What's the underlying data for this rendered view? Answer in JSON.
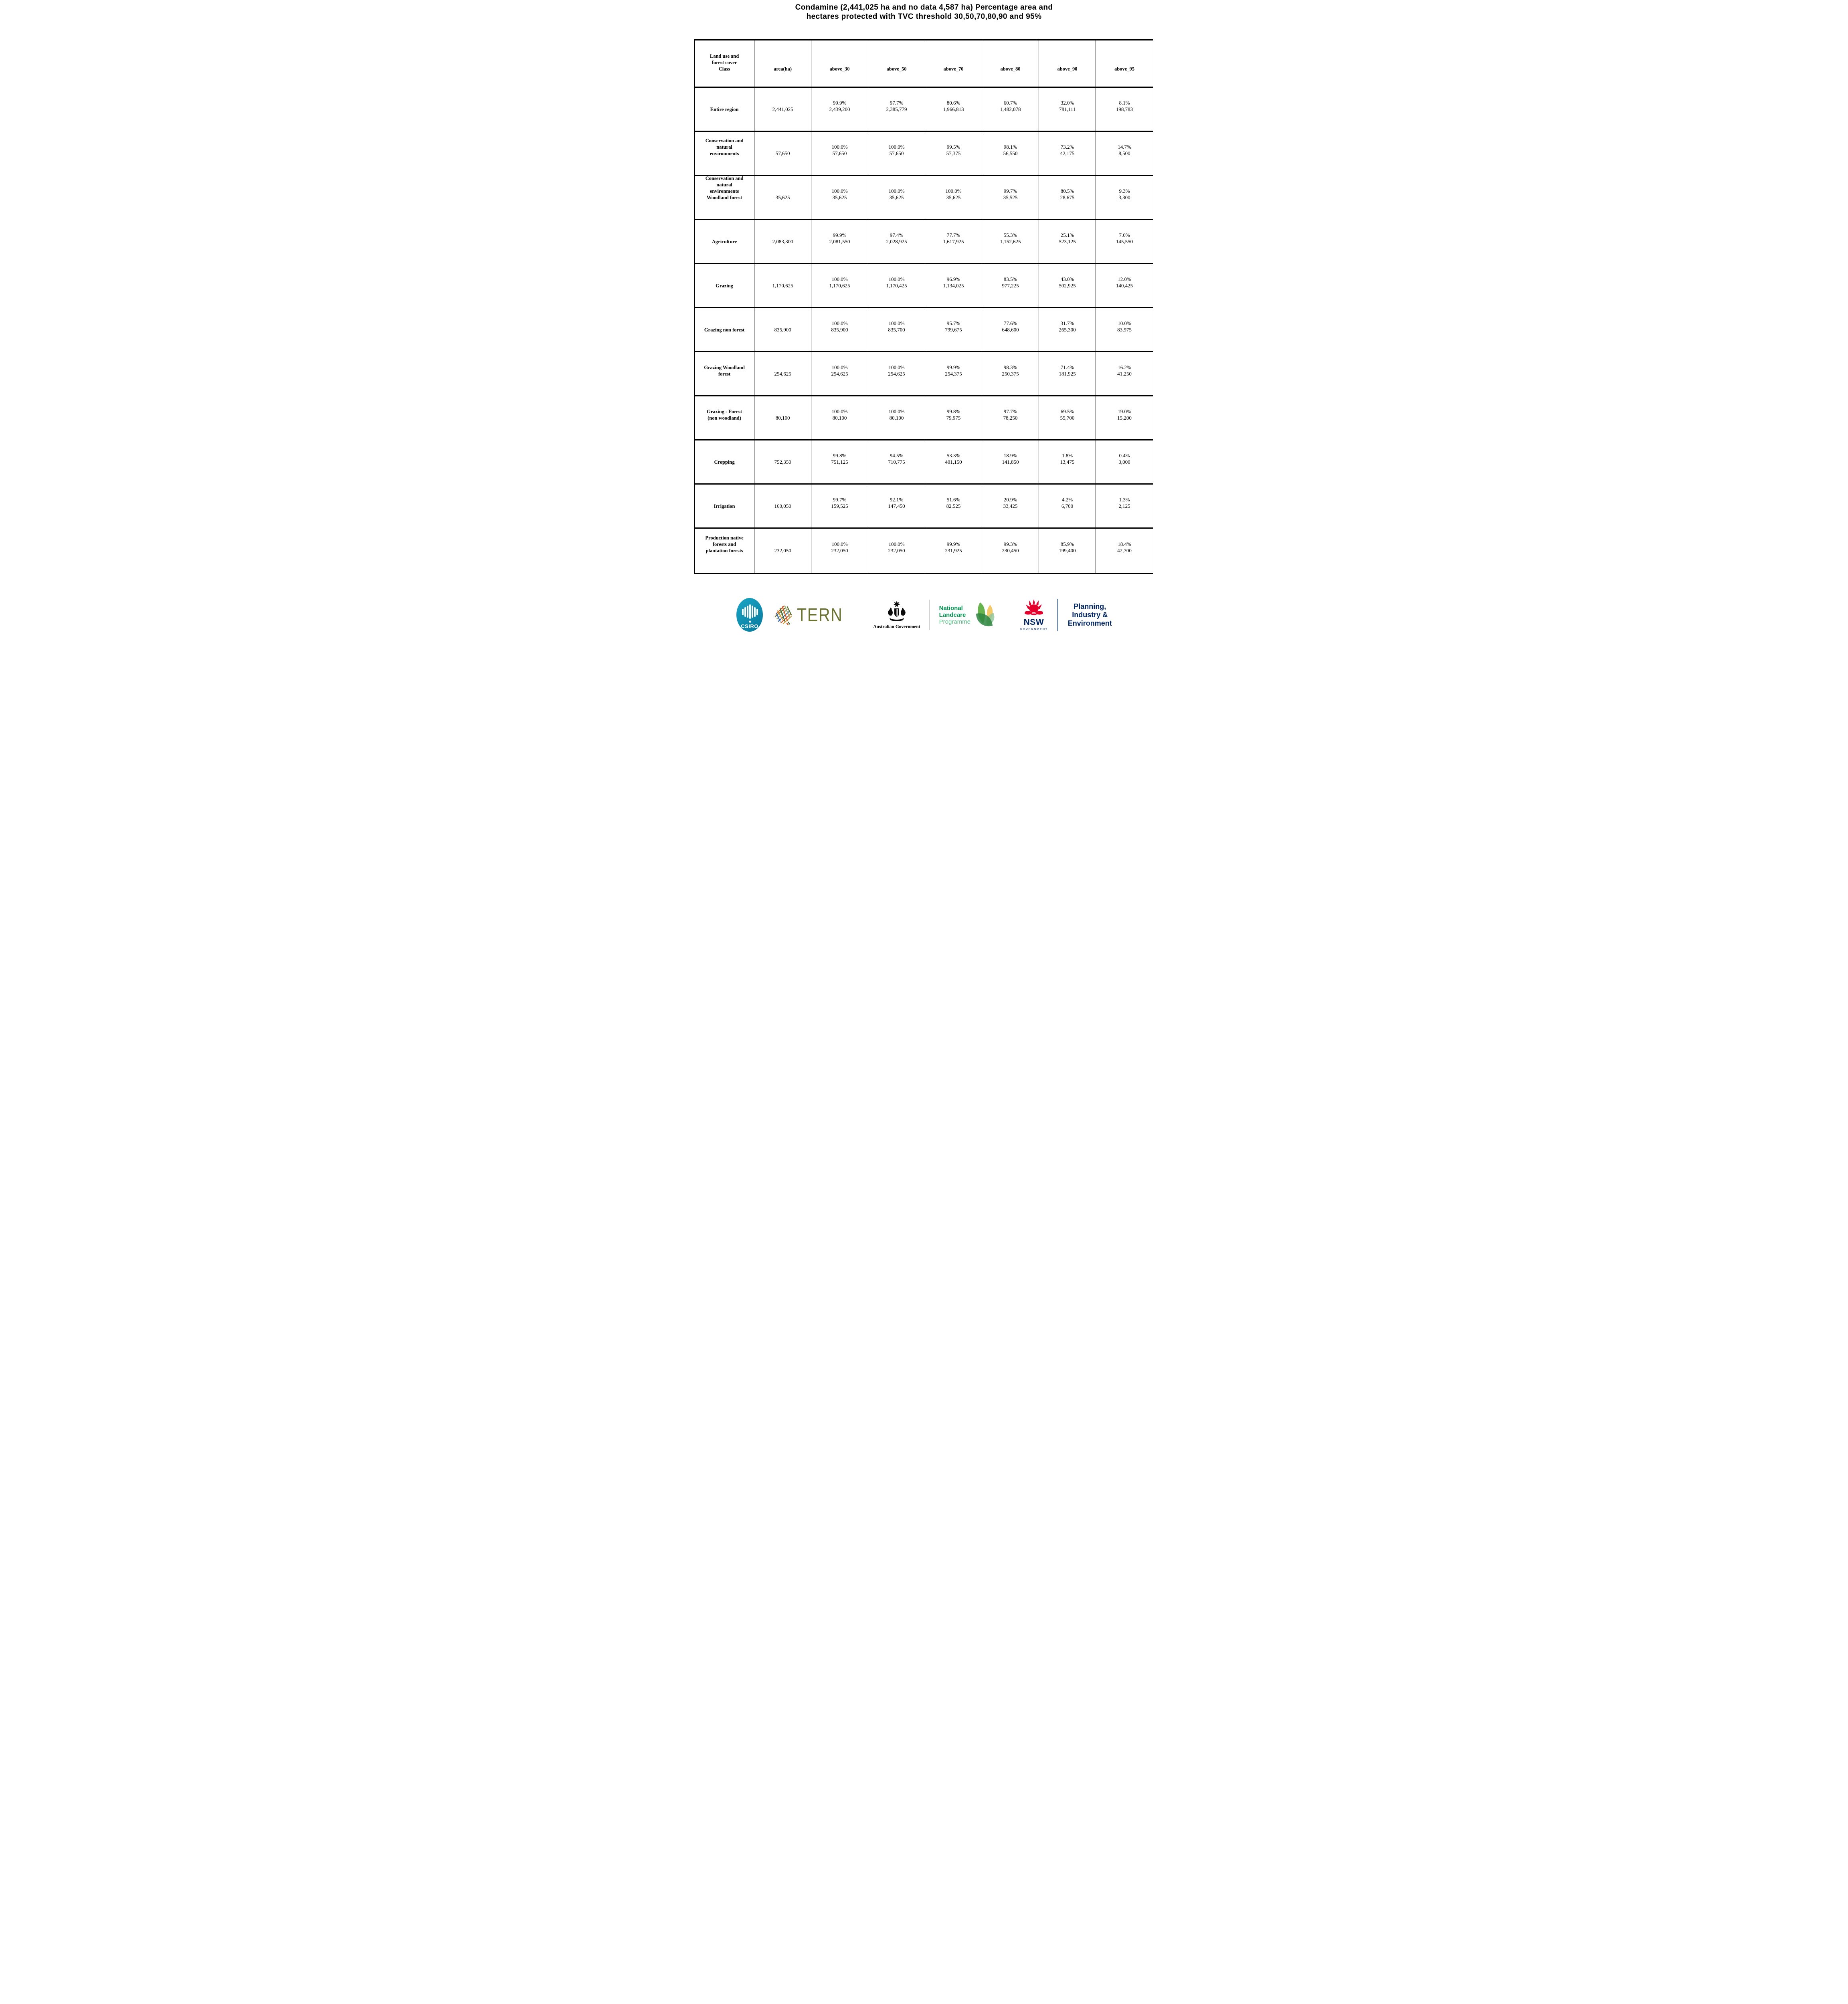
{
  "title": {
    "line1": "Condamine (2,441,025 ha and no data 4,587 ha) Percentage area and",
    "line2": "hectares protected with TVC threshold 30,50,70,80,90 and 95%"
  },
  "table": {
    "columns": [
      "Land use and forest cover Class",
      "area(ha)",
      "above_30",
      "above_50",
      "above_70",
      "above_80",
      "above_90",
      "above_95"
    ],
    "rows": [
      {
        "name": "Entire region",
        "area": "2,441,025",
        "thresholds": [
          {
            "pct": "99.9%",
            "ha": "2,439,200"
          },
          {
            "pct": "97.7%",
            "ha": "2,385,779"
          },
          {
            "pct": "80.6%",
            "ha": "1,966,813"
          },
          {
            "pct": "60.7%",
            "ha": "1,482,078"
          },
          {
            "pct": "32.0%",
            "ha": "781,111"
          },
          {
            "pct": "8.1%",
            "ha": "198,783"
          }
        ]
      },
      {
        "name": "Conservation and natural environments",
        "area": "57,650",
        "thresholds": [
          {
            "pct": "100.0%",
            "ha": "57,650"
          },
          {
            "pct": "100.0%",
            "ha": "57,650"
          },
          {
            "pct": "99.5%",
            "ha": "57,375"
          },
          {
            "pct": "98.1%",
            "ha": "56,550"
          },
          {
            "pct": "73.2%",
            "ha": "42,175"
          },
          {
            "pct": "14.7%",
            "ha": "8,500"
          }
        ]
      },
      {
        "name": "Conservation and natural environments Woodland forest",
        "area": "35,625",
        "thresholds": [
          {
            "pct": "100.0%",
            "ha": "35,625"
          },
          {
            "pct": "100.0%",
            "ha": "35,625"
          },
          {
            "pct": "100.0%",
            "ha": "35,625"
          },
          {
            "pct": "99.7%",
            "ha": "35,525"
          },
          {
            "pct": "80.5%",
            "ha": "28,675"
          },
          {
            "pct": "9.3%",
            "ha": "3,300"
          }
        ]
      },
      {
        "name": "Agriculture",
        "area": "2,083,300",
        "thresholds": [
          {
            "pct": "99.9%",
            "ha": "2,081,550"
          },
          {
            "pct": "97.4%",
            "ha": "2,028,925"
          },
          {
            "pct": "77.7%",
            "ha": "1,617,925"
          },
          {
            "pct": "55.3%",
            "ha": "1,152,625"
          },
          {
            "pct": "25.1%",
            "ha": "523,125"
          },
          {
            "pct": "7.0%",
            "ha": "145,550"
          }
        ]
      },
      {
        "name": "Grazing",
        "area": "1,170,625",
        "thresholds": [
          {
            "pct": "100.0%",
            "ha": "1,170,625"
          },
          {
            "pct": "100.0%",
            "ha": "1,170,425"
          },
          {
            "pct": "96.9%",
            "ha": "1,134,025"
          },
          {
            "pct": "83.5%",
            "ha": "977,225"
          },
          {
            "pct": "43.0%",
            "ha": "502,925"
          },
          {
            "pct": "12.0%",
            "ha": "140,425"
          }
        ]
      },
      {
        "name": "Grazing non forest",
        "area": "835,900",
        "thresholds": [
          {
            "pct": "100.0%",
            "ha": "835,900"
          },
          {
            "pct": "100.0%",
            "ha": "835,700"
          },
          {
            "pct": "95.7%",
            "ha": "799,675"
          },
          {
            "pct": "77.6%",
            "ha": "648,600"
          },
          {
            "pct": "31.7%",
            "ha": "265,300"
          },
          {
            "pct": "10.0%",
            "ha": "83,975"
          }
        ]
      },
      {
        "name": "Grazing Woodland forest",
        "area": "254,625",
        "thresholds": [
          {
            "pct": "100.0%",
            "ha": "254,625"
          },
          {
            "pct": "100.0%",
            "ha": "254,625"
          },
          {
            "pct": "99.9%",
            "ha": "254,375"
          },
          {
            "pct": "98.3%",
            "ha": "250,375"
          },
          {
            "pct": "71.4%",
            "ha": "181,925"
          },
          {
            "pct": "16.2%",
            "ha": "41,250"
          }
        ]
      },
      {
        "name": "Grazing - Forest (non woodland)",
        "area": "80,100",
        "thresholds": [
          {
            "pct": "100.0%",
            "ha": "80,100"
          },
          {
            "pct": "100.0%",
            "ha": "80,100"
          },
          {
            "pct": "99.8%",
            "ha": "79,975"
          },
          {
            "pct": "97.7%",
            "ha": "78,250"
          },
          {
            "pct": "69.5%",
            "ha": "55,700"
          },
          {
            "pct": "19.0%",
            "ha": "15,200"
          }
        ]
      },
      {
        "name": "Cropping",
        "area": "752,350",
        "thresholds": [
          {
            "pct": "99.8%",
            "ha": "751,125"
          },
          {
            "pct": "94.5%",
            "ha": "710,775"
          },
          {
            "pct": "53.3%",
            "ha": "401,150"
          },
          {
            "pct": "18.9%",
            "ha": "141,850"
          },
          {
            "pct": "1.8%",
            "ha": "13,475"
          },
          {
            "pct": "0.4%",
            "ha": "3,000"
          }
        ]
      },
      {
        "name": "Irrigation",
        "area": "160,050",
        "thresholds": [
          {
            "pct": "99.7%",
            "ha": "159,525"
          },
          {
            "pct": "92.1%",
            "ha": "147,450"
          },
          {
            "pct": "51.6%",
            "ha": "82,525"
          },
          {
            "pct": "20.9%",
            "ha": "33,425"
          },
          {
            "pct": "4.2%",
            "ha": "6,700"
          },
          {
            "pct": "1.3%",
            "ha": "2,125"
          }
        ]
      },
      {
        "name": "Production native forests and plantation forests",
        "area": "232,050",
        "thresholds": [
          {
            "pct": "100.0%",
            "ha": "232,050"
          },
          {
            "pct": "100.0%",
            "ha": "232,050"
          },
          {
            "pct": "99.9%",
            "ha": "231,925"
          },
          {
            "pct": "99.3%",
            "ha": "230,450"
          },
          {
            "pct": "85.9%",
            "ha": "199,400"
          },
          {
            "pct": "18.4%",
            "ha": "42,700"
          }
        ]
      }
    ]
  },
  "footer": {
    "csiro": {
      "label": "CSIRO",
      "teal": "#0d94b5"
    },
    "tern": {
      "label": "TERN",
      "olive": "#6b7231"
    },
    "aus_gov": {
      "label": "Australian Government"
    },
    "landcare": {
      "line1": "National",
      "line2": "Landcare",
      "line3": "Programme",
      "green": "#00914f",
      "light_green": "#58bb86"
    },
    "nsw": {
      "label": "NSW",
      "sublabel": "GOVERNMENT",
      "red": "#e4002b",
      "navy": "#002664"
    },
    "agency": {
      "line1": "Planning,",
      "line2": "Industry &",
      "line3": "Environment",
      "navy": "#002664"
    }
  }
}
